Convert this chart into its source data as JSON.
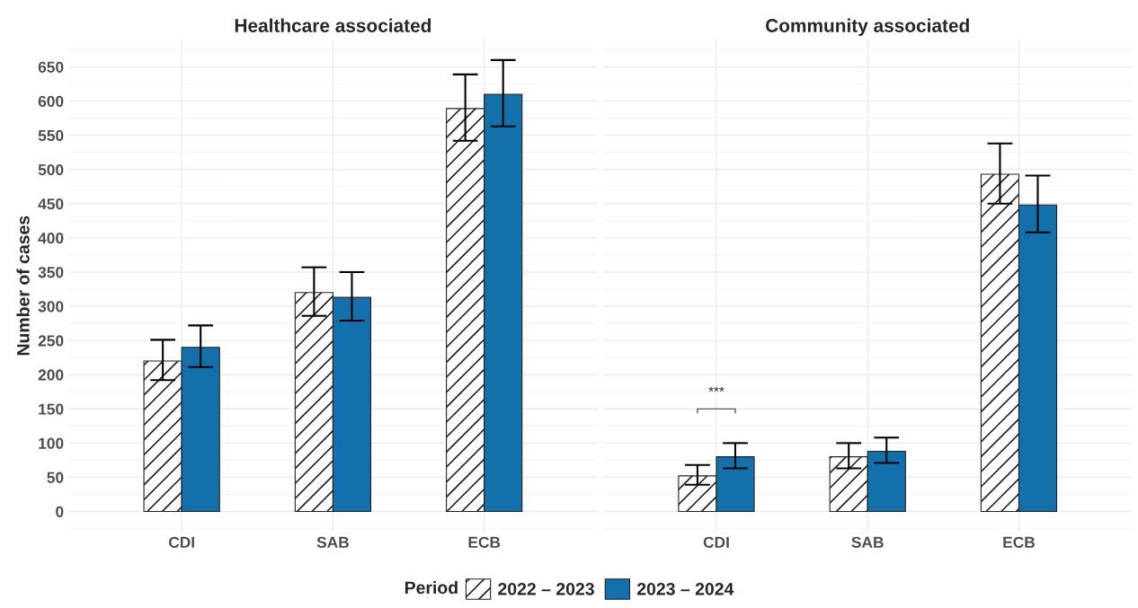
{
  "chart_data": [
    {
      "type": "bar",
      "title": "Healthcare associated",
      "ylabel": "Number of cases",
      "legend_title": "Period",
      "categories": [
        "CDI",
        "SAB",
        "ECB"
      ],
      "ylim": [
        -30,
        690
      ],
      "yticks": [
        0,
        50,
        100,
        150,
        200,
        250,
        300,
        350,
        400,
        450,
        500,
        550,
        600,
        650
      ],
      "grid": true,
      "legend": "bottom",
      "series": [
        {
          "name": "2022 – 2023",
          "color": "#222222",
          "values": [
            220,
            320,
            589
          ],
          "errors": [
            [
              192,
              251
            ],
            [
              286,
              357
            ],
            [
              542,
              639
            ]
          ]
        },
        {
          "name": "2023 – 2024",
          "color": "#1470ab",
          "values": [
            240,
            313,
            610
          ],
          "errors": [
            [
              211,
              272
            ],
            [
              279,
              350
            ],
            [
              563,
              660
            ]
          ]
        }
      ]
    },
    {
      "type": "bar",
      "title": "Community associated",
      "categories": [
        "CDI",
        "SAB",
        "ECB"
      ],
      "ylim": [
        -30,
        690
      ],
      "yticks": [
        0,
        50,
        100,
        150,
        200,
        250,
        300,
        350,
        400,
        450,
        500,
        550,
        600,
        650
      ],
      "grid": true,
      "tick_labels": "x",
      "annotations": [
        "***"
      ],
      "series": [
        {
          "color": "#222222",
          "values": [
            52,
            80,
            493
          ],
          "errors": [
            [
              39,
              68
            ],
            [
              63,
              100
            ],
            [
              450,
              538
            ]
          ]
        },
        {
          "color": "#1470ab",
          "values": [
            80,
            88,
            448
          ],
          "errors": [
            [
              63,
              100
            ],
            [
              71,
              108
            ],
            [
              408,
              491
            ]
          ]
        }
      ]
    }
  ]
}
